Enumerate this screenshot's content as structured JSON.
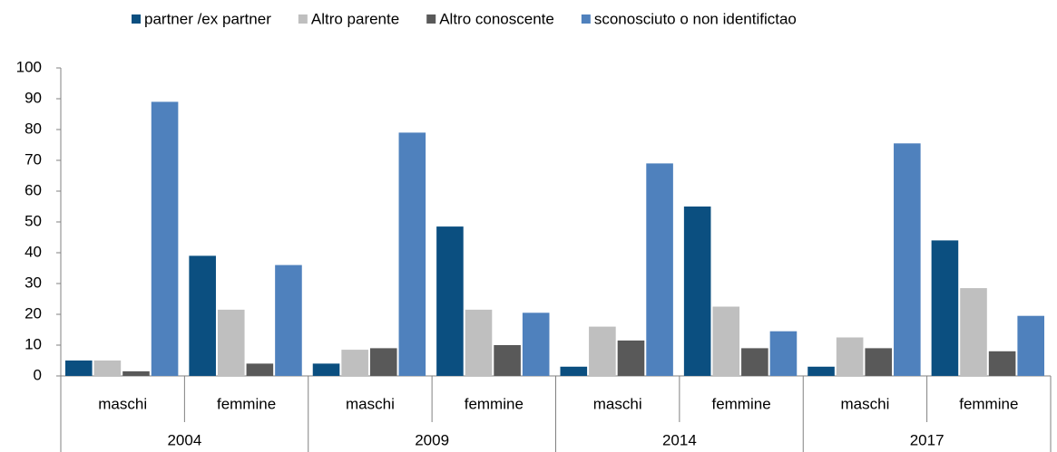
{
  "chart_data": {
    "type": "bar",
    "categories": [
      "maschi",
      "femmine",
      "maschi",
      "femmine",
      "maschi",
      "femmine",
      "maschi",
      "femmine"
    ],
    "groups": [
      "2004",
      "2009",
      "2014",
      "2017"
    ],
    "series": [
      {
        "name": "partner /ex partner",
        "color": "#0b4f80",
        "values": [
          5,
          39,
          4,
          48.5,
          3,
          55,
          3,
          44
        ]
      },
      {
        "name": "Altro parente",
        "color": "#bfbfbf",
        "values": [
          5,
          21.5,
          8.5,
          21.5,
          16,
          22.5,
          12.5,
          28.5
        ]
      },
      {
        "name": "Altro conoscente",
        "color": "#595959",
        "values": [
          1.5,
          4,
          9,
          10,
          11.5,
          9,
          9,
          8
        ]
      },
      {
        "name": "sconosciuto o non identifictao",
        "color": "#4f81bd",
        "values": [
          89,
          36,
          79,
          20.5,
          69,
          14.5,
          75.5,
          19.5
        ]
      }
    ],
    "ylim": [
      0,
      100
    ],
    "yticks": [
      0,
      10,
      20,
      30,
      40,
      50,
      60,
      70,
      80,
      90,
      100
    ],
    "legend": "top"
  }
}
